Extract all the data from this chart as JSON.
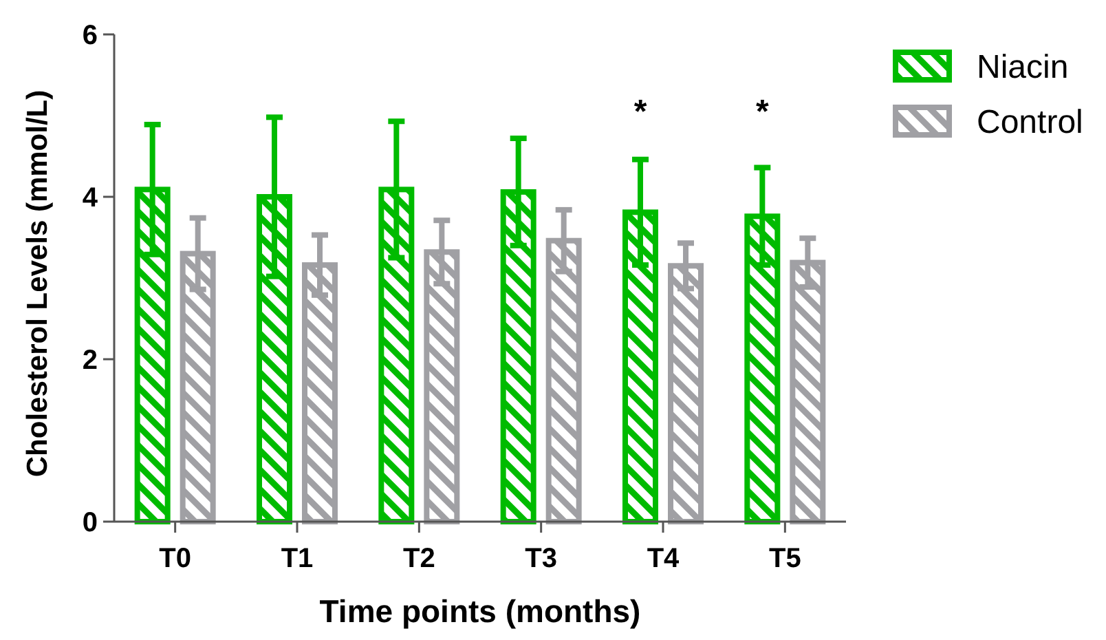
{
  "chart_data": {
    "type": "bar",
    "xlabel": "Time points (months)",
    "ylabel": "Cholesterol Levels (mmol/L)",
    "categories": [
      "T0",
      "T1",
      "T2",
      "T3",
      "T4",
      "T5"
    ],
    "series": [
      {
        "name": "Niacin",
        "color": "#00bb00",
        "values": [
          4.09,
          4.0,
          4.09,
          4.06,
          3.81,
          3.76
        ],
        "errors": [
          0.8,
          0.98,
          0.84,
          0.66,
          0.65,
          0.6
        ]
      },
      {
        "name": "Control",
        "color": "#a0a0a4",
        "values": [
          3.3,
          3.16,
          3.32,
          3.46,
          3.15,
          3.19
        ],
        "errors": [
          0.44,
          0.37,
          0.39,
          0.38,
          0.28,
          0.3
        ]
      }
    ],
    "ylim": [
      0,
      6
    ],
    "yticks": [
      0,
      2,
      4,
      6
    ],
    "grid": false,
    "legend": "top right",
    "annotations": [
      "*",
      "*"
    ]
  }
}
